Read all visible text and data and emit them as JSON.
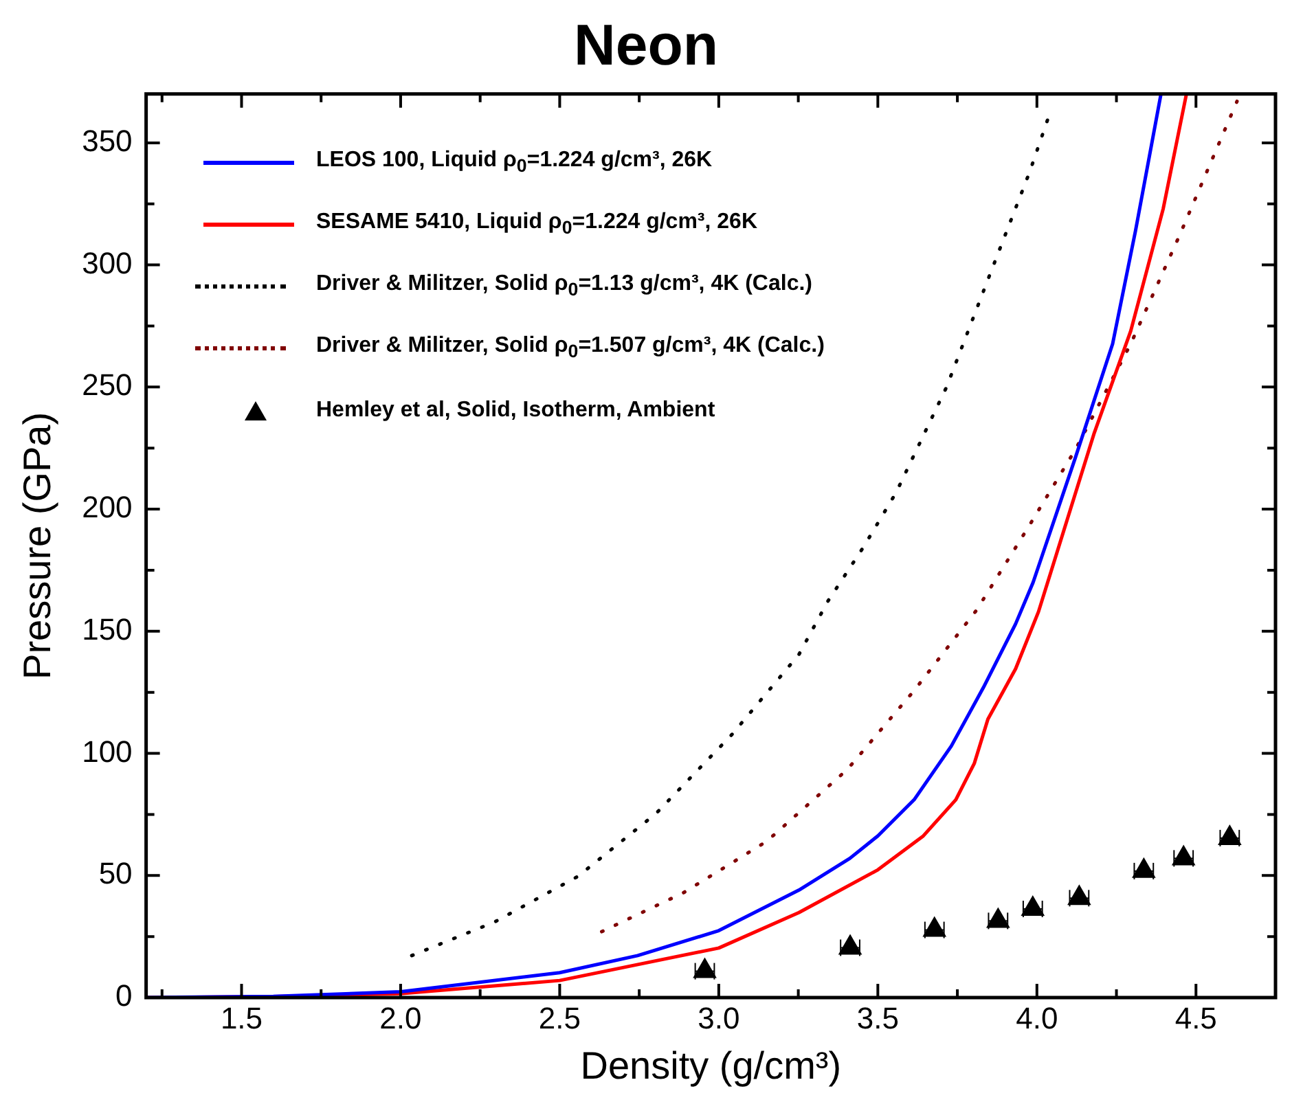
{
  "chart_data": {
    "type": "line",
    "title": "Neon",
    "xlabel": "Density (g/cm³)",
    "ylabel": "Pressure (GPa)",
    "xlim": [
      1.2,
      4.75
    ],
    "ylim": [
      0,
      370
    ],
    "xticks": [
      {
        "value": 1.25,
        "label": null
      },
      1.5,
      {
        "value": 1.75,
        "label": null
      },
      {
        "value": 2,
        "label": "2.0"
      },
      {
        "value": 2.25,
        "label": null
      },
      2.5,
      {
        "value": 2.75,
        "label": null
      },
      {
        "value": 3,
        "label": "3.0"
      },
      {
        "value": 3.25,
        "label": null
      },
      3.5,
      {
        "value": 3.75,
        "label": null
      },
      {
        "value": 4,
        "label": "4.0"
      },
      {
        "value": 4.25,
        "label": null
      },
      4.5,
      {
        "value": 4.75,
        "label": null
      }
    ],
    "yticks": [
      0,
      {
        "value": 25,
        "label": null
      },
      50,
      {
        "value": 75,
        "label": null
      },
      100,
      {
        "value": 125,
        "label": null
      },
      150,
      {
        "value": 175,
        "label": null
      },
      200,
      {
        "value": 225,
        "label": null
      },
      250,
      {
        "value": 275,
        "label": null
      },
      300,
      {
        "value": 325,
        "label": null
      },
      350
    ],
    "grid": false,
    "legend": "top left",
    "series": [
      {
        "name": "LEOS 100, Liquid ρ$_{0}$=1.224 g/cm³, 26K",
        "type": "line",
        "color": "#0000ff",
        "line_style": "solid",
        "marker": "none",
        "x": [
          1.2,
          1.6,
          2.0,
          2.5,
          2.745,
          3.0,
          3.252,
          3.412,
          3.5,
          3.614,
          3.731,
          3.832,
          3.933,
          3.988,
          4.122,
          4.238,
          4.31,
          4.39
        ],
        "values": [
          0,
          0.5,
          2.4,
          10.2,
          17.2,
          27.4,
          44,
          57,
          66.2,
          81,
          103,
          127,
          153,
          170,
          221.5,
          267.7,
          314,
          370
        ]
      },
      {
        "name": "SESAME 5410, Liquid ρ$_{0}$=1.224 g/cm³, 26K",
        "type": "line",
        "color": "#ff0000",
        "line_style": "solid",
        "marker": "none",
        "x": [
          1.2,
          1.6,
          2.0,
          2.5,
          3.0,
          3.252,
          3.5,
          3.643,
          3.745,
          3.803,
          3.846,
          3.933,
          4.005,
          4.179,
          4.295,
          4.397,
          4.47
        ],
        "values": [
          0,
          0.4,
          1.6,
          7,
          20.3,
          34.8,
          52.3,
          66.2,
          81,
          95.8,
          114,
          134.6,
          158,
          230.7,
          273,
          323,
          370
        ]
      },
      {
        "name": "Driver & Militzer, Solid ρ$_{0}$=1.13 g/cm³, 4K  (Calc.)",
        "type": "line",
        "color": "#000000",
        "line_style": "dotted",
        "marker": "none",
        "x": [
          2.035,
          2.296,
          2.557,
          2.803,
          3.042,
          3.252,
          3.343,
          3.455,
          3.557,
          3.716,
          3.846,
          3.977,
          4.035
        ],
        "values": [
          17.2,
          31,
          49.6,
          75.4,
          107.8,
          140.5,
          162.3,
          184.5,
          206.7,
          250,
          294,
          338,
          360
        ]
      },
      {
        "name": "Driver & Militzer, Solid ρ$_{0}$=1.507 g/cm³, 4K (Calc.)",
        "type": "line",
        "color": "#800000",
        "line_style": "dotted",
        "marker": "none",
        "x": [
          2.632,
          2.89,
          3.151,
          3.404,
          3.614,
          3.81,
          3.97,
          4.122,
          4.295,
          4.448,
          4.629
        ],
        "values": [
          27,
          43,
          64,
          93.4,
          125.7,
          158.6,
          192,
          224.6,
          267.7,
          312,
          367
        ]
      },
      {
        "name": "Hemley et al, Solid, Isotherm, Ambient",
        "type": "scatter",
        "color": "#000000",
        "marker": "triangle",
        "x": [
          2.956,
          3.413,
          3.678,
          3.878,
          3.987,
          4.133,
          4.336,
          4.461,
          4.606
        ],
        "values": [
          10.8,
          20.4,
          27.7,
          31.4,
          36.3,
          40.7,
          51.8,
          57,
          65.3
        ],
        "xerrors": [
          0.03,
          0.03,
          0.03,
          0.03,
          0.03,
          0.03,
          0.03,
          0.03,
          0.03
        ]
      }
    ]
  }
}
